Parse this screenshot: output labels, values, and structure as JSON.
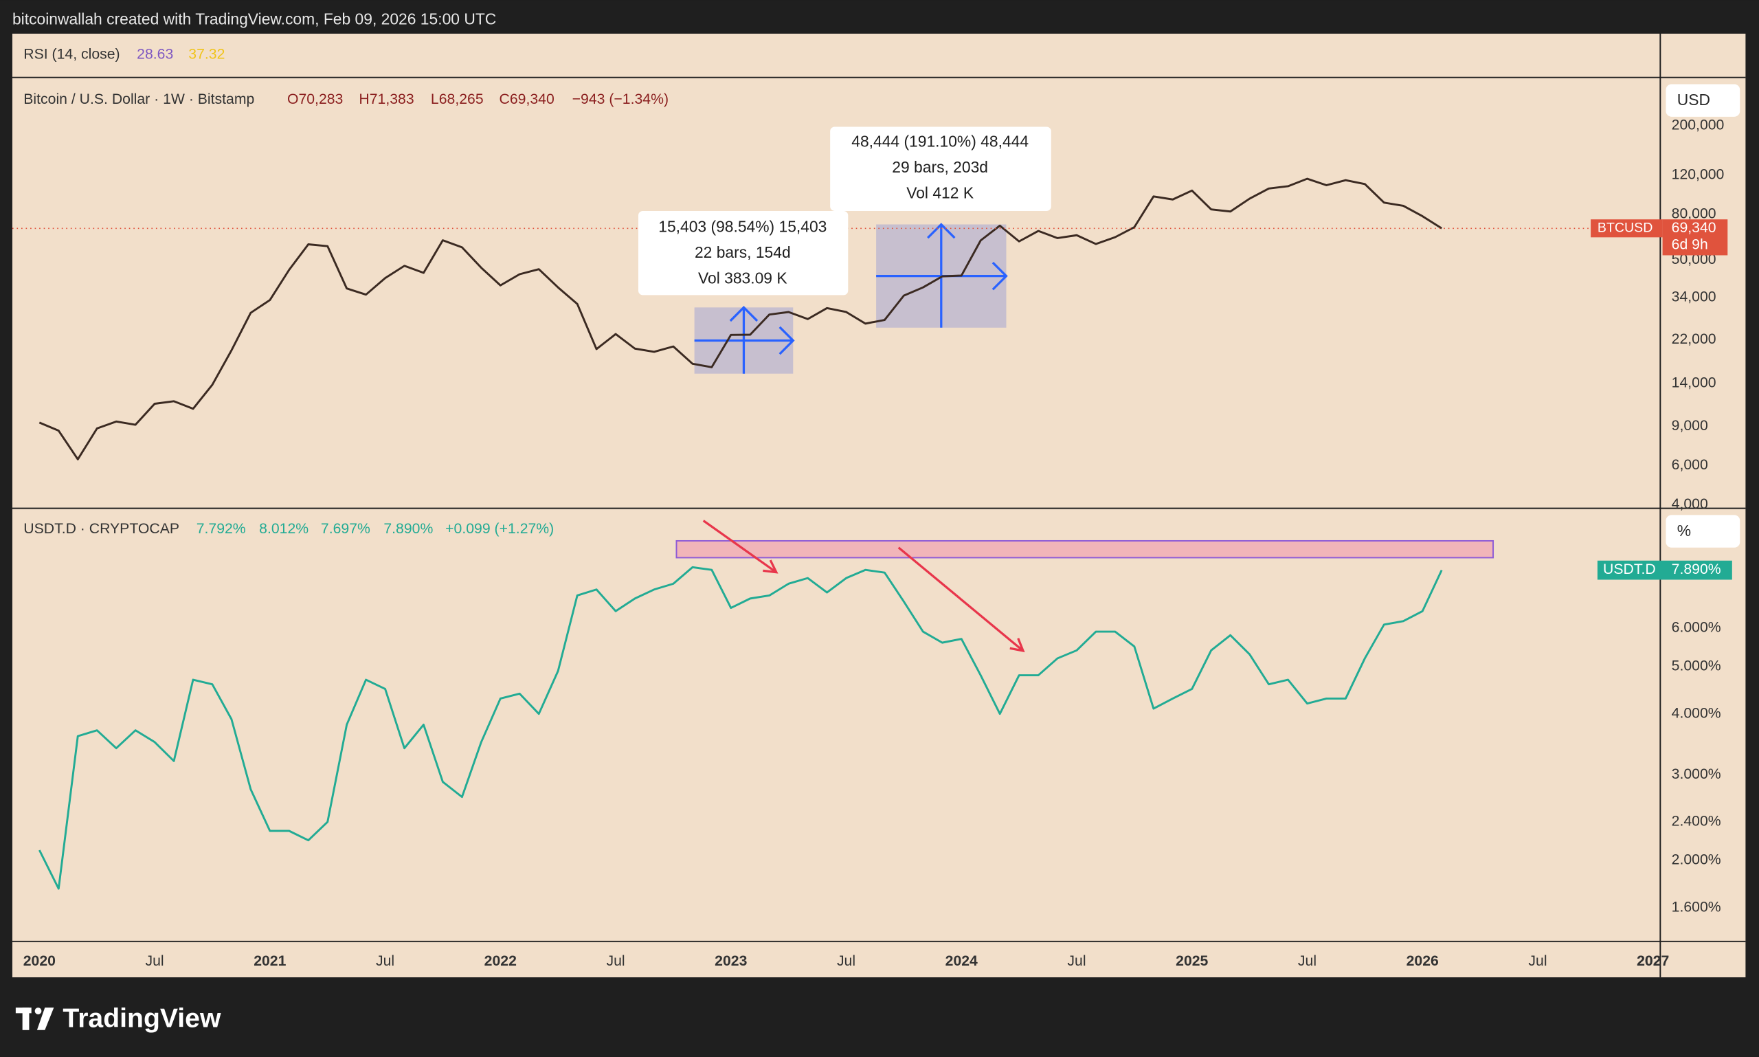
{
  "header": {
    "credit": "bitcoinwallah created with TradingView.com, Feb 09, 2026 15:00 UTC"
  },
  "rsi": {
    "label": "RSI (14, close)",
    "value_texts": [
      "28.63",
      "37.32"
    ]
  },
  "annotations": [
    {
      "lines": [
        "15,403 (98.54%) 15,403",
        "22 bars, 154d",
        "Vol 383.09 K"
      ]
    },
    {
      "lines": [
        "48,444 (191.10%) 48,444",
        "29 bars, 203d",
        "Vol 412 K"
      ]
    }
  ],
  "footer": {
    "brand": "TradingView"
  },
  "chart_data": [
    {
      "type": "line",
      "title": "Bitcoin / U.S. Dollar · 1W · Bitstamp",
      "legend": [
        "O70,283",
        "H71,383",
        "L68,265",
        "C69,340",
        "−943 (−1.34%)"
      ],
      "scale_button": "USD",
      "log_scale": true,
      "grid": false,
      "price_label": {
        "symbol": "BTCUSD",
        "value": "69,340",
        "countdown": "6d 9h"
      },
      "x": [
        "2020-01",
        "2020-02",
        "2020-03",
        "2020-04",
        "2020-05",
        "2020-06",
        "2020-07",
        "2020-08",
        "2020-09",
        "2020-10",
        "2020-11",
        "2020-12",
        "2021-01",
        "2021-02",
        "2021-03",
        "2021-04",
        "2021-05",
        "2021-06",
        "2021-07",
        "2021-08",
        "2021-09",
        "2021-10",
        "2021-11",
        "2021-12",
        "2022-01",
        "2022-02",
        "2022-03",
        "2022-04",
        "2022-05",
        "2022-06",
        "2022-07",
        "2022-08",
        "2022-09",
        "2022-10",
        "2022-11",
        "2022-12",
        "2023-01",
        "2023-02",
        "2023-03",
        "2023-04",
        "2023-05",
        "2023-06",
        "2023-07",
        "2023-08",
        "2023-09",
        "2023-10",
        "2023-11",
        "2023-12",
        "2024-01",
        "2024-02",
        "2024-03",
        "2024-04",
        "2024-05",
        "2024-06",
        "2024-07",
        "2024-08",
        "2024-09",
        "2024-10",
        "2024-11",
        "2024-12",
        "2025-01",
        "2025-02",
        "2025-03",
        "2025-04",
        "2025-05",
        "2025-06",
        "2025-07",
        "2025-08",
        "2025-09",
        "2025-10",
        "2025-11",
        "2025-12",
        "2026-01",
        "2026-02"
      ],
      "series": [
        {
          "name": "BTCUSD",
          "color": "#3b2a22",
          "values": [
            9350,
            8600,
            6400,
            8800,
            9450,
            9140,
            11350,
            11650,
            10780,
            13800,
            19700,
            29000,
            33100,
            45200,
            58800,
            57700,
            37300,
            35000,
            41500,
            47100,
            43800,
            61300,
            57000,
            46200,
            38500,
            43200,
            45500,
            37700,
            31800,
            19950,
            23300,
            20050,
            19400,
            20500,
            17150,
            16550,
            23100,
            23150,
            28500,
            29250,
            27200,
            30450,
            29250,
            25950,
            26950,
            34650,
            37700,
            42250,
            42600,
            61200,
            71300,
            60600,
            67500,
            62700,
            64600,
            59000,
            63300,
            70200,
            96400,
            93400,
            102400,
            84300,
            82500,
            94200,
            104600,
            107100,
            115700,
            108200,
            114000,
            109500,
            90400,
            87500,
            78600,
            69340
          ]
        }
      ],
      "xlim": [
        "2019-12",
        "2027-01"
      ],
      "ylim": [
        3860,
        329000
      ],
      "yticks": [
        {
          "value": 200000,
          "label": "200,000"
        },
        {
          "value": 120000,
          "label": "120,000"
        },
        {
          "value": 80000,
          "label": "80,000"
        },
        {
          "value": 50000,
          "label": "50,000"
        },
        {
          "value": 34000,
          "label": "34,000"
        },
        {
          "value": 22000,
          "label": "22,000"
        },
        {
          "value": 14000,
          "label": "14,000"
        },
        {
          "value": 9000,
          "label": "9,000"
        },
        {
          "value": 6000,
          "label": "6,000"
        },
        {
          "value": 4000,
          "label": "4,000"
        }
      ]
    },
    {
      "type": "line",
      "title": "USDT.D · CRYPTOCAP",
      "legend": [
        "7.792%",
        "8.012%",
        "7.697%",
        "7.890%",
        "+0.099 (+1.27%)"
      ],
      "scale_button": "%",
      "log_scale": true,
      "grid": false,
      "price_label": {
        "symbol": "USDT.D",
        "value": "7.890%"
      },
      "x": [
        "2020-01",
        "2020-02",
        "2020-03",
        "2020-04",
        "2020-05",
        "2020-06",
        "2020-07",
        "2020-08",
        "2020-09",
        "2020-10",
        "2020-11",
        "2020-12",
        "2021-01",
        "2021-02",
        "2021-03",
        "2021-04",
        "2021-05",
        "2021-06",
        "2021-07",
        "2021-08",
        "2021-09",
        "2021-10",
        "2021-11",
        "2021-12",
        "2022-01",
        "2022-02",
        "2022-03",
        "2022-04",
        "2022-05",
        "2022-06",
        "2022-07",
        "2022-08",
        "2022-09",
        "2022-10",
        "2022-11",
        "2022-12",
        "2023-01",
        "2023-02",
        "2023-03",
        "2023-04",
        "2023-05",
        "2023-06",
        "2023-07",
        "2023-08",
        "2023-09",
        "2023-10",
        "2023-11",
        "2023-12",
        "2024-01",
        "2024-02",
        "2024-03",
        "2024-04",
        "2024-05",
        "2024-06",
        "2024-07",
        "2024-08",
        "2024-09",
        "2024-10",
        "2024-11",
        "2024-12",
        "2025-01",
        "2025-02",
        "2025-03",
        "2025-04",
        "2025-05",
        "2025-06",
        "2025-07",
        "2025-08",
        "2025-09",
        "2025-10",
        "2025-11",
        "2025-12",
        "2026-01",
        "2026-02"
      ],
      "series": [
        {
          "name": "USDT.D",
          "color": "#22ab94",
          "values": [
            2.1,
            1.75,
            3.6,
            3.7,
            3.4,
            3.7,
            3.5,
            3.2,
            4.7,
            4.6,
            3.9,
            2.8,
            2.3,
            2.3,
            2.2,
            2.4,
            3.8,
            4.7,
            4.5,
            3.4,
            3.8,
            2.9,
            2.7,
            3.5,
            4.3,
            4.4,
            4.0,
            4.9,
            7.0,
            7.2,
            6.5,
            6.9,
            7.2,
            7.4,
            8.0,
            7.9,
            6.6,
            6.9,
            7.0,
            7.4,
            7.6,
            7.1,
            7.6,
            7.9,
            7.8,
            6.8,
            5.9,
            5.6,
            5.7,
            4.8,
            4.0,
            4.8,
            4.8,
            5.2,
            5.4,
            5.9,
            5.9,
            5.5,
            4.1,
            4.3,
            4.5,
            5.4,
            5.8,
            5.3,
            4.6,
            4.7,
            4.2,
            4.3,
            4.3,
            5.2,
            6.1,
            6.2,
            6.5,
            7.89
          ]
        }
      ],
      "xlim": [
        "2019-12",
        "2027-01"
      ],
      "xticks": [
        {
          "value": "2020-01",
          "label": "2020"
        },
        {
          "value": "2020-07",
          "label": "Jul"
        },
        {
          "value": "2021-01",
          "label": "2021"
        },
        {
          "value": "2021-07",
          "label": "Jul"
        },
        {
          "value": "2022-01",
          "label": "2022"
        },
        {
          "value": "2022-07",
          "label": "Jul"
        },
        {
          "value": "2023-01",
          "label": "2023"
        },
        {
          "value": "2023-07",
          "label": "Jul"
        },
        {
          "value": "2024-01",
          "label": "2024"
        },
        {
          "value": "2024-07",
          "label": "Jul"
        },
        {
          "value": "2025-01",
          "label": "2025"
        },
        {
          "value": "2025-07",
          "label": "Jul"
        },
        {
          "value": "2026-01",
          "label": "2026"
        },
        {
          "value": "2026-07",
          "label": "Jul"
        },
        {
          "value": "2027-01",
          "label": "2027"
        }
      ],
      "ylim": [
        1.364,
        10.57
      ],
      "yticks": [
        {
          "value": 6,
          "label": "6.000%"
        },
        {
          "value": 5,
          "label": "5.000%"
        },
        {
          "value": 4,
          "label": "4.000%"
        },
        {
          "value": 3,
          "label": "3.000%"
        },
        {
          "value": 2.4,
          "label": "2.400%"
        },
        {
          "value": 2,
          "label": "2.000%"
        },
        {
          "value": 1.6,
          "label": "1.600%"
        }
      ]
    }
  ]
}
